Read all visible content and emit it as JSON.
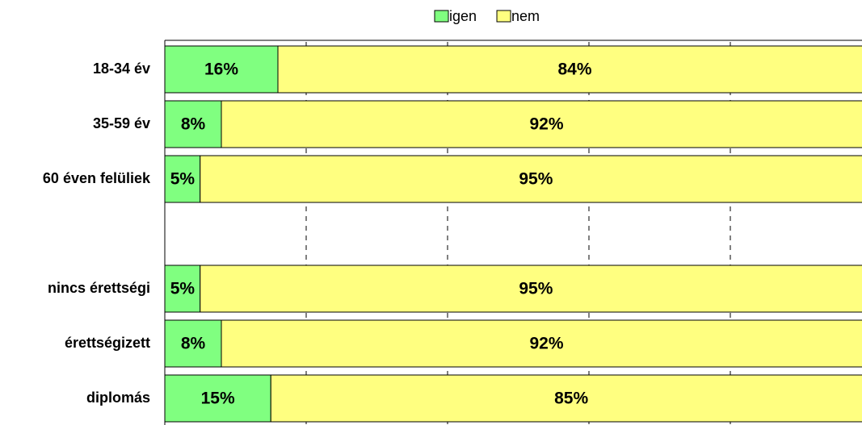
{
  "chart_data": {
    "type": "stacked_barh",
    "categories": [
      "18-34 év",
      "35-59 év",
      "60 éven felüliek",
      null,
      "nincs érettségi",
      "érettségizett",
      "diplomás"
    ],
    "series": [
      {
        "name": "igen",
        "color": "#80ff80",
        "values": [
          16,
          8,
          5,
          null,
          5,
          8,
          15
        ],
        "value_labels": [
          "16%",
          "8%",
          "5%",
          null,
          "5%",
          "8%",
          "15%"
        ]
      },
      {
        "name": "nem",
        "color": "#ffff80",
        "values": [
          84,
          92,
          95,
          null,
          95,
          92,
          85
        ],
        "value_labels": [
          "84%",
          "92%",
          "95%",
          null,
          "95%",
          "92%",
          "85%"
        ]
      }
    ],
    "xlim": [
      0,
      100
    ],
    "xticks": [
      0,
      20,
      40,
      60,
      80,
      100
    ],
    "grid": true,
    "legend": "top"
  }
}
